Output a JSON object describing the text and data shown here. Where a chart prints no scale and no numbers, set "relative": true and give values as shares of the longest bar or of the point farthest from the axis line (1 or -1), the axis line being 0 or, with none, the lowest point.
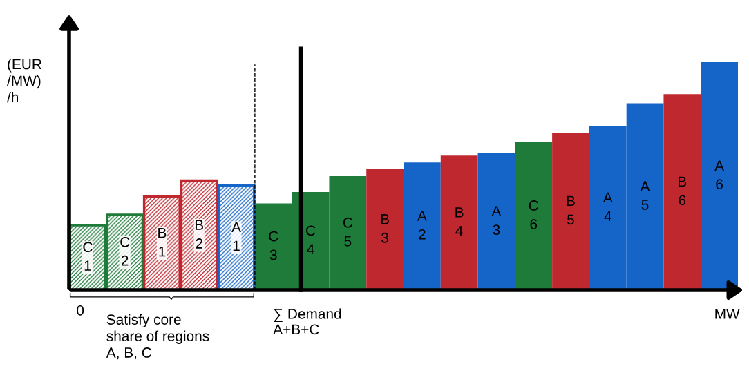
{
  "chart_data": {
    "type": "bar",
    "relative": true,
    "xlabel": "MW",
    "ylabel": "(EUR\n/MW)\n/h",
    "categories": [
      "C\n1",
      "C\n2",
      "B\n1",
      "B\n2",
      "A\n1",
      "C\n3",
      "C\n4",
      "C\n5",
      "B\n3",
      "A\n2",
      "B\n4",
      "A\n3",
      "C\n6",
      "B\n5",
      "A\n4",
      "A\n5",
      "B\n6",
      "A\n6"
    ],
    "series": [
      {
        "values": [
          0.285,
          0.33,
          0.41,
          0.48,
          0.46,
          null,
          null,
          null,
          null,
          null,
          null,
          null,
          null,
          null,
          null,
          null,
          null,
          null
        ],
        "colors": [
          "#1e7b3a",
          "#1e7b3a",
          "#c0282f",
          "#c0282f",
          "#1565c8",
          null,
          null,
          null,
          null,
          null,
          null,
          null,
          null,
          null,
          null,
          null,
          null,
          null
        ]
      },
      {
        "values": [
          null,
          null,
          null,
          null,
          null,
          0.38,
          0.43,
          0.5,
          0.53,
          0.56,
          0.59,
          0.6,
          0.65,
          0.69,
          0.72,
          0.82,
          0.86,
          1.0
        ],
        "colors": [
          null,
          null,
          null,
          null,
          null,
          "#1e7b3a",
          "#1e7b3a",
          "#1e7b3a",
          "#c0282f",
          "#1565c8",
          "#c0282f",
          "#1565c8",
          "#1e7b3a",
          "#c0282f",
          "#1565c8",
          "#1565c8",
          "#c0282f",
          "#1565c8"
        ]
      }
    ],
    "annotations": [
      "0",
      "Satisfy core\nshare of regions\nA, B, C",
      "∑ Demand\nA+B+C"
    ]
  }
}
